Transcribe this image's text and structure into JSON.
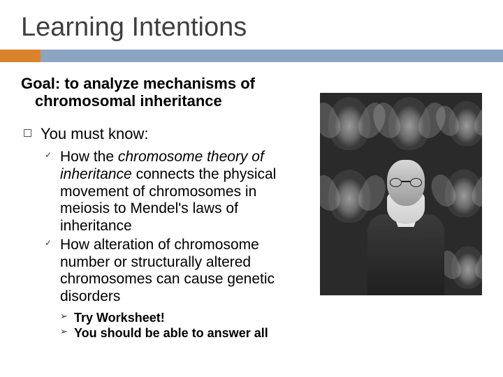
{
  "title": "Learning Intentions",
  "accent": {
    "orange": "#d9842c",
    "blue": "#8ba4c2"
  },
  "goal": {
    "line1": "Goal: to analyze mechanisms of",
    "line2": "chromosomal inheritance"
  },
  "mustKnow": {
    "label": "You must know:",
    "items": [
      {
        "pre": "How the ",
        "em": "chromosome theory of inheritance",
        "post": " connects the physical movement of chromosomes in meiosis to Mendel's laws of inheritance"
      },
      {
        "pre": "How alteration of chromosome number or structurally altered chromosomes can cause genetic disorders",
        "em": "",
        "post": ""
      }
    ]
  },
  "actions": [
    "Try Worksheet!",
    "You should be able to answer all"
  ],
  "figure": {
    "description": "Grayscale composite: bearded man with round glasses surrounded by fruit flies",
    "background": "#2a2a2a"
  }
}
